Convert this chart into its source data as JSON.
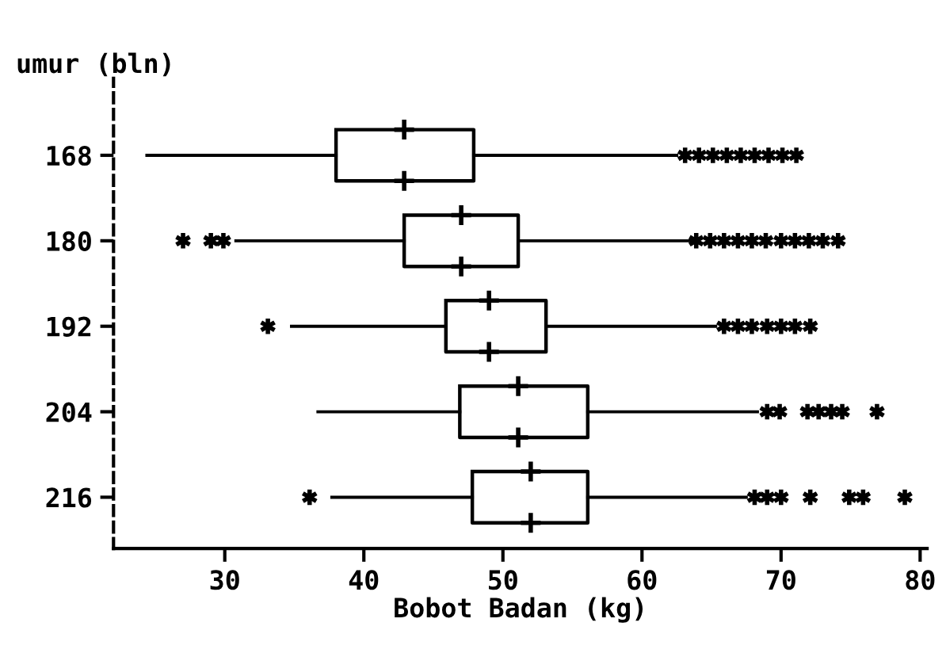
{
  "chart_data": {
    "type": "box",
    "orientation": "horizontal",
    "ylabel": "umur (bln)",
    "xlabel": "Bobot Badan (kg)",
    "categories": [
      "168",
      "180",
      "192",
      "204",
      "216"
    ],
    "boxes": [
      {
        "low": 24.4,
        "q1": 38.0,
        "median": 42.9,
        "q3": 47.9,
        "high": 62.5,
        "outliers": [
          63.1,
          64.1,
          65.1,
          66.1,
          67.1,
          68.1,
          69.1,
          70.1,
          71.1
        ]
      },
      {
        "low": 30.8,
        "q1": 42.9,
        "median": 47.0,
        "q3": 51.1,
        "high": 63.5,
        "outliers": [
          27.0,
          29.0,
          29.9,
          63.9,
          64.9,
          65.9,
          66.9,
          67.9,
          68.9,
          70.0,
          71.0,
          72.0,
          73.0,
          74.1
        ]
      },
      {
        "low": 34.8,
        "q1": 45.9,
        "median": 49.0,
        "q3": 53.1,
        "high": 65.3,
        "outliers": [
          33.1,
          65.9,
          66.9,
          67.9,
          69.0,
          70.0,
          71.0,
          72.1
        ]
      },
      {
        "low": 36.7,
        "q1": 46.9,
        "median": 51.1,
        "q3": 56.1,
        "high": 68.3,
        "outliers": [
          69.0,
          69.9,
          71.9,
          72.7,
          73.6,
          74.4,
          76.9
        ]
      },
      {
        "low": 37.7,
        "q1": 47.8,
        "median": 52.0,
        "q3": 56.1,
        "high": 67.5,
        "outliers": [
          36.1,
          68.1,
          69.0,
          70.0,
          72.1,
          74.9,
          75.9,
          78.9
        ]
      }
    ],
    "xlim": [
      22,
      80.5
    ],
    "xticks": [
      30,
      40,
      50,
      60,
      70,
      80
    ],
    "grid": false
  }
}
